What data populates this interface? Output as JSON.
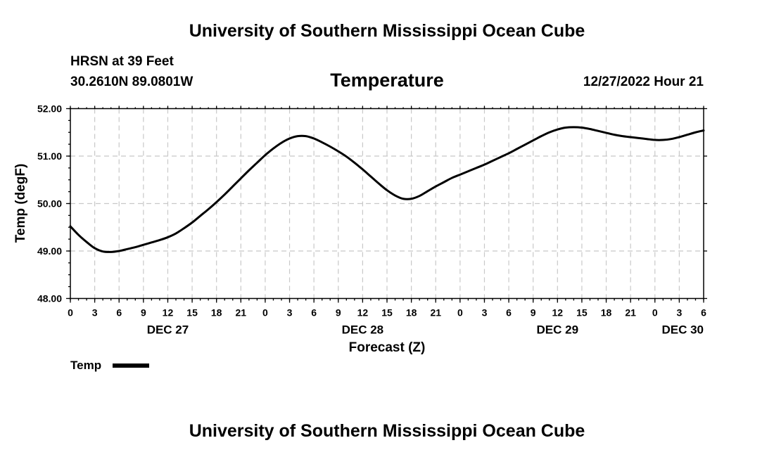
{
  "header": {
    "title": "University of Southern Mississippi Ocean Cube",
    "station": "HRSN at 39 Feet",
    "coords": "30.2610N  89.0801W",
    "datetime": "12/27/2022 Hour 21"
  },
  "footer": {
    "title": "University of Southern Mississippi Ocean Cube"
  },
  "chart_data": {
    "type": "line",
    "title": "Temperature",
    "xlabel": "Forecast (Z)",
    "ylabel": "Temp (degF)",
    "x_unit": "hours",
    "xlim": [
      0,
      78
    ],
    "ylim": [
      48,
      52
    ],
    "grid": true,
    "y_ticks": [
      "48.00",
      "49.00",
      "50.00",
      "51.00",
      "52.00"
    ],
    "x_tick_hours": [
      0,
      3,
      6,
      9,
      12,
      15,
      18,
      21,
      24,
      27,
      30,
      33,
      36,
      39,
      42,
      45,
      48,
      51,
      54,
      57,
      60,
      63,
      66,
      69,
      72,
      75,
      78
    ],
    "x_tick_labels": [
      "0",
      "3",
      "6",
      "9",
      "12",
      "15",
      "18",
      "21",
      "0",
      "3",
      "6",
      "9",
      "12",
      "15",
      "18",
      "21",
      "0",
      "3",
      "6",
      "9",
      "12",
      "15",
      "18",
      "21",
      "0",
      "3",
      "6"
    ],
    "day_labels": [
      {
        "label": "DEC 27",
        "hour": 12
      },
      {
        "label": "DEC 28",
        "hour": 36
      },
      {
        "label": "DEC 29",
        "hour": 60
      },
      {
        "label": "DEC 30",
        "hour": 78
      }
    ],
    "legend": {
      "position": "bottom-left",
      "entries": [
        "Temp"
      ]
    },
    "series": [
      {
        "name": "Temp",
        "color": "#000000",
        "x": [
          0,
          1,
          2,
          3,
          4,
          5,
          6,
          7,
          8,
          9,
          10,
          11,
          12,
          13,
          14,
          15,
          16,
          17,
          18,
          19,
          20,
          21,
          22,
          23,
          24,
          25,
          26,
          27,
          28,
          29,
          30,
          31,
          32,
          33,
          34,
          35,
          36,
          37,
          38,
          39,
          40,
          41,
          42,
          43,
          44,
          45,
          46,
          47,
          48,
          49,
          50,
          51,
          52,
          53,
          54,
          55,
          56,
          57,
          58,
          59,
          60,
          61,
          62,
          63,
          64,
          65,
          66,
          67,
          68,
          69,
          70,
          71,
          72,
          73,
          74,
          75,
          76,
          77,
          78
        ],
        "values": [
          49.52,
          49.34,
          49.19,
          49.06,
          48.99,
          48.98,
          49.0,
          49.04,
          49.08,
          49.13,
          49.18,
          49.23,
          49.29,
          49.37,
          49.48,
          49.6,
          49.74,
          49.88,
          50.03,
          50.19,
          50.36,
          50.53,
          50.7,
          50.86,
          51.02,
          51.16,
          51.28,
          51.37,
          51.42,
          51.42,
          51.37,
          51.29,
          51.2,
          51.1,
          50.99,
          50.86,
          50.72,
          50.57,
          50.42,
          50.28,
          50.17,
          50.1,
          50.1,
          50.16,
          50.26,
          50.36,
          50.45,
          50.54,
          50.61,
          50.68,
          50.75,
          50.82,
          50.9,
          50.98,
          51.06,
          51.15,
          51.24,
          51.33,
          51.42,
          51.5,
          51.56,
          51.6,
          51.61,
          51.6,
          51.57,
          51.53,
          51.49,
          51.45,
          51.42,
          51.4,
          51.38,
          51.36,
          51.34,
          51.34,
          51.36,
          51.4,
          51.45,
          51.5,
          51.54
        ]
      }
    ]
  }
}
